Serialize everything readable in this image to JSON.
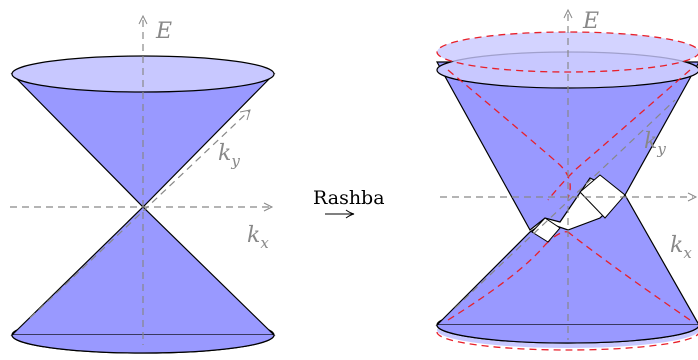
{
  "left": {
    "e_label": "E",
    "ky_label": {
      "base": "k",
      "sub": "y"
    },
    "kx_label": {
      "base": "k",
      "sub": "x"
    }
  },
  "arrow": {
    "label": "Rashba"
  },
  "right": {
    "e_label": "E",
    "ky_label": {
      "base": "k",
      "sub": "y"
    },
    "kx_label": {
      "base": "k",
      "sub": "x"
    }
  }
}
